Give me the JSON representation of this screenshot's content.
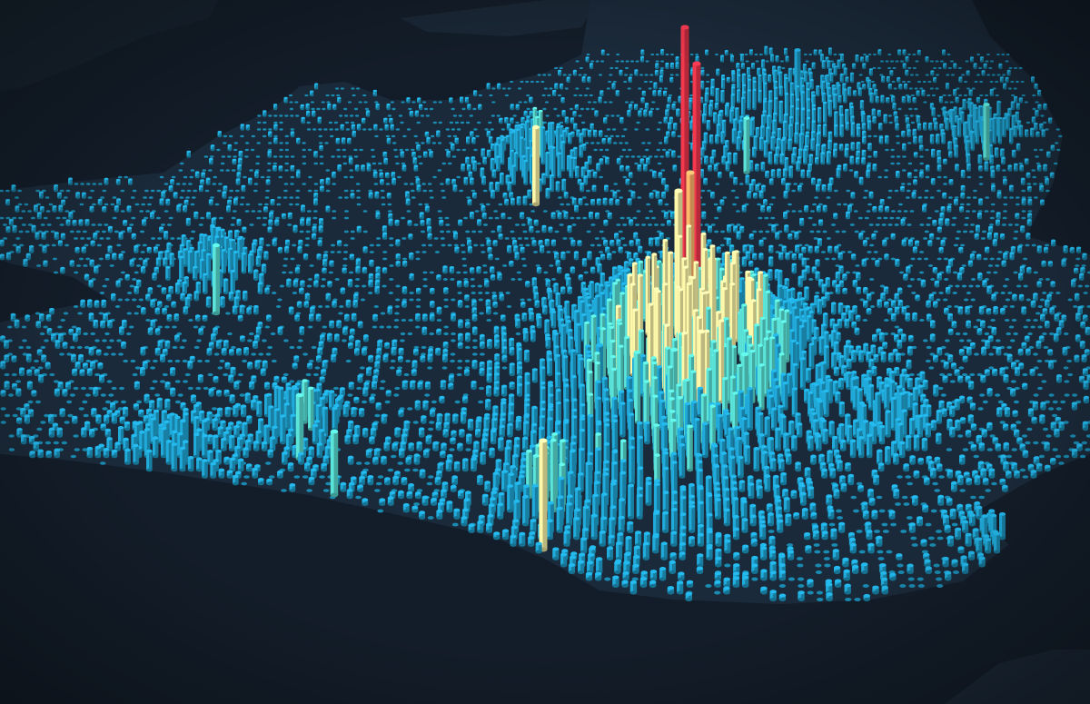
{
  "map": {
    "style": "dark",
    "visualization": "3d-column-layer",
    "region": "south-of-england-and-wales",
    "colors": {
      "background": "#141f2c",
      "land": "#1b2a3a",
      "land_edge": "#223447",
      "sea": "#131d29",
      "low": "#1fa3d1",
      "mid_low": "#57d9cf",
      "mid": "#f2eca2",
      "mid_high": "#fbb068",
      "high": "#e8354a"
    },
    "color_scale": [
      {
        "level": "low",
        "color": "#1fa3d1"
      },
      {
        "level": "mid_low",
        "color": "#57d9cf"
      },
      {
        "level": "mid",
        "color": "#f2eca2"
      },
      {
        "level": "mid_high",
        "color": "#fbb068"
      },
      {
        "level": "high",
        "color": "#e8354a"
      }
    ]
  }
}
